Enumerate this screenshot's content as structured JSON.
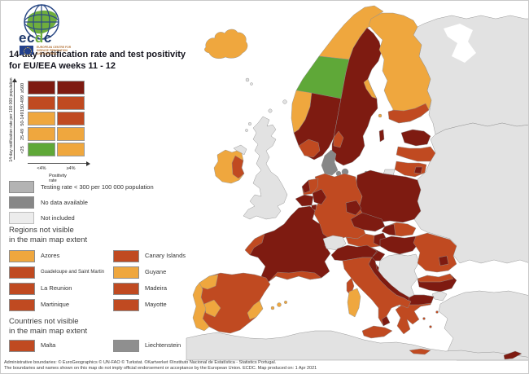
{
  "header": {
    "brand_prefix": "ec",
    "brand_d": "d",
    "brand_suffix": "c",
    "logo_subtitle_l1": "EUROPEAN CENTRE FOR",
    "logo_subtitle_l2": "DISEASE PREVENTION",
    "logo_subtitle_l3": "AND CONTROL",
    "title_line1": "14-day notification rate and test positivity",
    "title_line2": "for EU/EEA weeks 11 - 12"
  },
  "matrix_legend": {
    "y_axis_label": "14-day notification rate per 100 000 population",
    "x_axis_label": "Positivity rate",
    "row_labels": [
      "≥500",
      "150-499",
      "50-149",
      "25-49",
      "<25"
    ],
    "col_labels": [
      "<4%",
      "≥4%"
    ],
    "cells": [
      [
        "dark",
        "dark"
      ],
      [
        "red",
        "red"
      ],
      [
        "orange",
        "red"
      ],
      [
        "orange",
        "orange"
      ],
      [
        "green",
        "orange"
      ]
    ]
  },
  "status_legend": [
    {
      "key": "testing",
      "label": "Testing rate < 300 per 100 000 population"
    },
    {
      "key": "nodata",
      "label": "No data available"
    },
    {
      "key": "notincluded",
      "label": "Not included"
    }
  ],
  "regions_section": {
    "heading_line1": "Regions not visible",
    "heading_line2": "in the main map extent",
    "items": [
      {
        "label": "Azores",
        "color": "orange",
        "small": false
      },
      {
        "label": "Canary Islands",
        "color": "red",
        "small": false
      },
      {
        "label": "Guadeloupe and Saint Martin",
        "color": "red",
        "small": true
      },
      {
        "label": "Guyane",
        "color": "orange",
        "small": false
      },
      {
        "label": "La Reunion",
        "color": "red",
        "small": false
      },
      {
        "label": "Madeira",
        "color": "red",
        "small": false
      },
      {
        "label": "Martinique",
        "color": "red",
        "small": false
      },
      {
        "label": "Mayotte",
        "color": "red",
        "small": false
      }
    ]
  },
  "countries_section": {
    "heading_line1": "Countries not visible",
    "heading_line2": "in the main map extent",
    "items": [
      {
        "label": "Malta",
        "color": "red",
        "small": false
      },
      {
        "label": "Liechtenstein",
        "color": "liech_gray",
        "small": false
      }
    ]
  },
  "footer": {
    "line1": "Administrative boundaries: © EuroGeographics © UN-FAO © Turkstat. ©Kartverket ©Instituto Nacional de Estatística - Statistics Portugal.",
    "line2": "The boundaries and names shown on this map do not imply official endorsement or acceptance by the European Union. ECDC. Map produced on: 1 Apr 2021"
  },
  "palette": {
    "green": "#5FA838",
    "orange": "#EFA73E",
    "red": "#C04A21",
    "dark": "#7E1B11",
    "testing": "#B3B3B3",
    "nodata": "#878787",
    "notincluded": "#ECECEC",
    "excluded": "#E2E2E2",
    "liech_gray": "#8F8F8F",
    "sea": "#FFFFFF"
  },
  "map": {
    "regions": {
      "iceland": "orange",
      "faroe1": "excluded",
      "faroe2": "excluded",
      "ireland": "orange",
      "ireland_east": "red",
      "northern_ireland": "excluded",
      "great_britain": "excluded",
      "shetland": "excluded",
      "orkney": "excluded",
      "hebrides1": "excluded",
      "hebrides2": "excluded",
      "norway_north": "orange",
      "norway_trondelag": "green",
      "norway_west": "orange",
      "norway_southeast": "dark",
      "norway_south": "red",
      "sweden": "dark",
      "sweden_coast": "orange",
      "sweden_west": "red",
      "gotland": "dark",
      "finland": "orange",
      "finland_south": "red",
      "aland": "orange",
      "denmark": "nodata",
      "denmark_funen": "nodata",
      "denmark_zealand": "nodata",
      "bornholm": "nodata",
      "estonia": "dark",
      "latvia": "red",
      "lithuania": "red",
      "lithuania_southeast": "dark",
      "kaliningrad": "excluded",
      "poland": "dark",
      "germany": "red",
      "germany_west": "dark",
      "germany_east": "dark",
      "netherlands": "red",
      "netherlands_west": "dark",
      "belgium": "dark",
      "luxembourg": "dark",
      "france": "dark",
      "france_brittany": "red",
      "france_south": "red",
      "corsica": "red",
      "switzerland": "excluded",
      "austria": "red",
      "austria_east": "dark",
      "czechia": "dark",
      "slovakia": "red",
      "slovakia_west": "dark",
      "hungary": "dark",
      "slovenia": "dark",
      "croatia": "dark",
      "western_balkans": "excluded",
      "romania": "red",
      "romania_patch": "dark",
      "bulgaria": "dark",
      "bulgaria_north": "red",
      "greece": "red",
      "greece_north": "dark",
      "crete": "red",
      "aegean1": "red",
      "aegean2": "red",
      "aegean3": "red",
      "cyprus": "dark",
      "italy_north": "dark",
      "italy_peninsula": "red",
      "italy_adriatic": "dark",
      "calabria_tip": "dark",
      "sicily": "red",
      "sardinia": "orange",
      "spain": "red",
      "galicia": "orange",
      "extremadura": "orange",
      "valencia": "orange",
      "balearic1": "orange",
      "balearic2": "orange",
      "balearic3": "orange",
      "portugal": "orange",
      "russia_northeast": "excluded",
      "eastern_europe": "excluded",
      "turkey": "excluded",
      "turkey_thrace": "excluded",
      "africa": "excluded"
    }
  }
}
